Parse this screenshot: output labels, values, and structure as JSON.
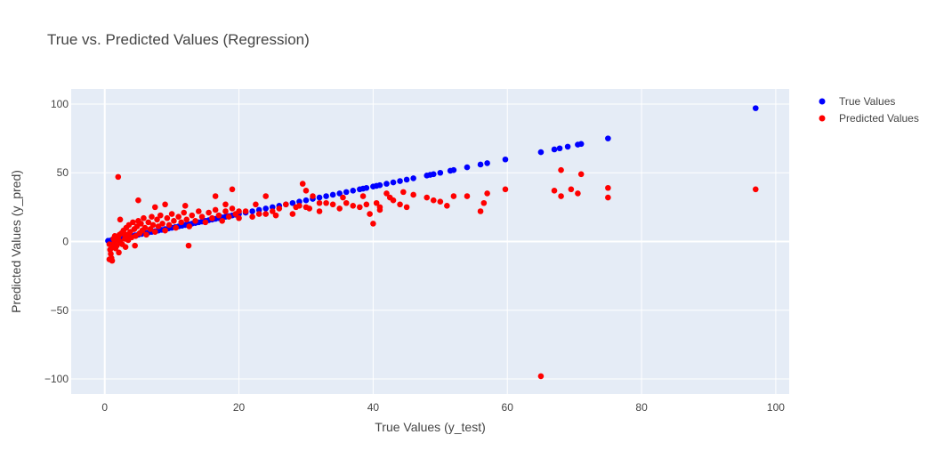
{
  "chart_data": {
    "type": "scatter",
    "title": "True vs. Predicted Values (Regression)",
    "xlabel": "True Values (y_test)",
    "ylabel": "Predicted Values (y_pred)",
    "xlim": [
      -5,
      102
    ],
    "ylim": [
      -111,
      111
    ],
    "xticks": [
      0,
      20,
      40,
      60,
      80,
      100
    ],
    "yticks": [
      -100,
      -50,
      0,
      50,
      100
    ],
    "ytick_labels": [
      "−100",
      "−50",
      "0",
      "50",
      "100"
    ],
    "grid": true,
    "legend_position": "top-right",
    "series": [
      {
        "name": "True Values",
        "color": "#0000ff",
        "points": [
          [
            0.5,
            0.5
          ],
          [
            1,
            1
          ],
          [
            1.5,
            1.5
          ],
          [
            2,
            2
          ],
          [
            2.5,
            2.5
          ],
          [
            3,
            3
          ],
          [
            3.5,
            3.5
          ],
          [
            4,
            4
          ],
          [
            4.5,
            4.5
          ],
          [
            5,
            5
          ],
          [
            5.5,
            5.5
          ],
          [
            6,
            6
          ],
          [
            6.5,
            6.5
          ],
          [
            7,
            7
          ],
          [
            7.5,
            7.5
          ],
          [
            8,
            8
          ],
          [
            8.5,
            8.5
          ],
          [
            9,
            9
          ],
          [
            9.5,
            9.5
          ],
          [
            10,
            10
          ],
          [
            10.5,
            10.5
          ],
          [
            11,
            11
          ],
          [
            11.5,
            11.5
          ],
          [
            12,
            12
          ],
          [
            12.5,
            12.5
          ],
          [
            13,
            13
          ],
          [
            13.5,
            13.5
          ],
          [
            14,
            14
          ],
          [
            14.5,
            14.5
          ],
          [
            15,
            15
          ],
          [
            15.5,
            15.5
          ],
          [
            16,
            16
          ],
          [
            16.5,
            16.5
          ],
          [
            17,
            17
          ],
          [
            17.5,
            17.5
          ],
          [
            18,
            18
          ],
          [
            18.5,
            18.5
          ],
          [
            19,
            19
          ],
          [
            19.5,
            19.5
          ],
          [
            20,
            20
          ],
          [
            21,
            21
          ],
          [
            22,
            22
          ],
          [
            23,
            23
          ],
          [
            24,
            24
          ],
          [
            25,
            25
          ],
          [
            26,
            26
          ],
          [
            27,
            27
          ],
          [
            28,
            28
          ],
          [
            29,
            29
          ],
          [
            30,
            30
          ],
          [
            31,
            31
          ],
          [
            32,
            32
          ],
          [
            33,
            33
          ],
          [
            34,
            34
          ],
          [
            35,
            35
          ],
          [
            36,
            36
          ],
          [
            37,
            37
          ],
          [
            38,
            38
          ],
          [
            38.5,
            38.5
          ],
          [
            39,
            39
          ],
          [
            40,
            40
          ],
          [
            40.5,
            40.5
          ],
          [
            41,
            41
          ],
          [
            42,
            42
          ],
          [
            43,
            43
          ],
          [
            44,
            44
          ],
          [
            45,
            45
          ],
          [
            46,
            46
          ],
          [
            48,
            48
          ],
          [
            48.5,
            48.5
          ],
          [
            49,
            49
          ],
          [
            50,
            50
          ],
          [
            51.5,
            51.5
          ],
          [
            52,
            52
          ],
          [
            54,
            54
          ],
          [
            56,
            56
          ],
          [
            57,
            57
          ],
          [
            59.7,
            59.7
          ],
          [
            65,
            65
          ],
          [
            67,
            67
          ],
          [
            67.8,
            67.8
          ],
          [
            69,
            69
          ],
          [
            70.5,
            70.5
          ],
          [
            71,
            71
          ],
          [
            75,
            75
          ],
          [
            97,
            97
          ]
        ]
      },
      {
        "name": "Predicted Values",
        "color": "#ff0000",
        "points": [
          [
            0.7,
            -2
          ],
          [
            0.8,
            -6
          ],
          [
            0.9,
            -9
          ],
          [
            1,
            -12
          ],
          [
            1.1,
            -14
          ],
          [
            0.7,
            -13
          ],
          [
            1.2,
            -4
          ],
          [
            1.3,
            2
          ],
          [
            1.4,
            -1
          ],
          [
            1.5,
            4
          ],
          [
            1.6,
            -5
          ],
          [
            1.7,
            1
          ],
          [
            1.8,
            -3
          ],
          [
            2,
            3
          ],
          [
            2.1,
            -8
          ],
          [
            2.2,
            5
          ],
          [
            2.3,
            0
          ],
          [
            2.5,
            6
          ],
          [
            2.6,
            -2
          ],
          [
            2.8,
            8
          ],
          [
            3,
            2
          ],
          [
            3.1,
            -4
          ],
          [
            3.2,
            10
          ],
          [
            3.4,
            5
          ],
          [
            3.5,
            1
          ],
          [
            3.6,
            12
          ],
          [
            3.8,
            7
          ],
          [
            4,
            3
          ],
          [
            4.2,
            14
          ],
          [
            4.4,
            9
          ],
          [
            4.6,
            4
          ],
          [
            4.8,
            11
          ],
          [
            5,
            15
          ],
          [
            5.2,
            6
          ],
          [
            5.4,
            13
          ],
          [
            5.6,
            8
          ],
          [
            5.8,
            17
          ],
          [
            6,
            10
          ],
          [
            6.2,
            5
          ],
          [
            6.5,
            14
          ],
          [
            6.8,
            9
          ],
          [
            7,
            18
          ],
          [
            7.2,
            12
          ],
          [
            7.5,
            7
          ],
          [
            7.8,
            16
          ],
          [
            8,
            11
          ],
          [
            8.3,
            19
          ],
          [
            8.6,
            13
          ],
          [
            9,
            8
          ],
          [
            9.3,
            17
          ],
          [
            9.6,
            12
          ],
          [
            10,
            20
          ],
          [
            10.3,
            15
          ],
          [
            10.6,
            10
          ],
          [
            11,
            18
          ],
          [
            11.4,
            14
          ],
          [
            11.8,
            21
          ],
          [
            12.2,
            16
          ],
          [
            12.6,
            11
          ],
          [
            13,
            19
          ],
          [
            13.5,
            15
          ],
          [
            14,
            22
          ],
          [
            14.5,
            18
          ],
          [
            15,
            14
          ],
          [
            15.5,
            21
          ],
          [
            16,
            17
          ],
          [
            16.5,
            23
          ],
          [
            17,
            19
          ],
          [
            17.5,
            15
          ],
          [
            18,
            22
          ],
          [
            18.5,
            18
          ],
          [
            19,
            24
          ],
          [
            19.5,
            20
          ],
          [
            20,
            17
          ],
          [
            2,
            47
          ],
          [
            2.3,
            16
          ],
          [
            3,
            5
          ],
          [
            4.5,
            -3
          ],
          [
            5,
            30
          ],
          [
            7.5,
            25
          ],
          [
            9,
            27
          ],
          [
            12.5,
            -3
          ],
          [
            12,
            26
          ],
          [
            16.5,
            33
          ],
          [
            18,
            27
          ],
          [
            19,
            38
          ],
          [
            20,
            22
          ],
          [
            21,
            22
          ],
          [
            22,
            18
          ],
          [
            22.5,
            27
          ],
          [
            23,
            20
          ],
          [
            24,
            33
          ],
          [
            24,
            20
          ],
          [
            25,
            22
          ],
          [
            25.5,
            19
          ],
          [
            26,
            24
          ],
          [
            27,
            27
          ],
          [
            28,
            20
          ],
          [
            28.5,
            25
          ],
          [
            29,
            26
          ],
          [
            29.5,
            42
          ],
          [
            30,
            25
          ],
          [
            30,
            37
          ],
          [
            30.5,
            24
          ],
          [
            31,
            33
          ],
          [
            32,
            22
          ],
          [
            32,
            28
          ],
          [
            33,
            28
          ],
          [
            34,
            27
          ],
          [
            35,
            24
          ],
          [
            35.5,
            32
          ],
          [
            36,
            28
          ],
          [
            37,
            26
          ],
          [
            38,
            25
          ],
          [
            38.5,
            33
          ],
          [
            39,
            27
          ],
          [
            39.5,
            20
          ],
          [
            40,
            13
          ],
          [
            40.5,
            28
          ],
          [
            41,
            25
          ],
          [
            41,
            23
          ],
          [
            42,
            35
          ],
          [
            42.5,
            32
          ],
          [
            43,
            30
          ],
          [
            44,
            27
          ],
          [
            44.5,
            36
          ],
          [
            45,
            25
          ],
          [
            46,
            34
          ],
          [
            48,
            32
          ],
          [
            49,
            30
          ],
          [
            50,
            29
          ],
          [
            51,
            26
          ],
          [
            52,
            33
          ],
          [
            54,
            33
          ],
          [
            56,
            22
          ],
          [
            56.5,
            28
          ],
          [
            57,
            35
          ],
          [
            59.7,
            38
          ],
          [
            65,
            -98
          ],
          [
            67,
            37
          ],
          [
            68,
            52
          ],
          [
            68,
            33
          ],
          [
            69.5,
            38
          ],
          [
            70.5,
            35
          ],
          [
            71,
            49
          ],
          [
            75,
            39
          ],
          [
            75,
            32
          ],
          [
            97,
            38
          ]
        ]
      }
    ]
  }
}
